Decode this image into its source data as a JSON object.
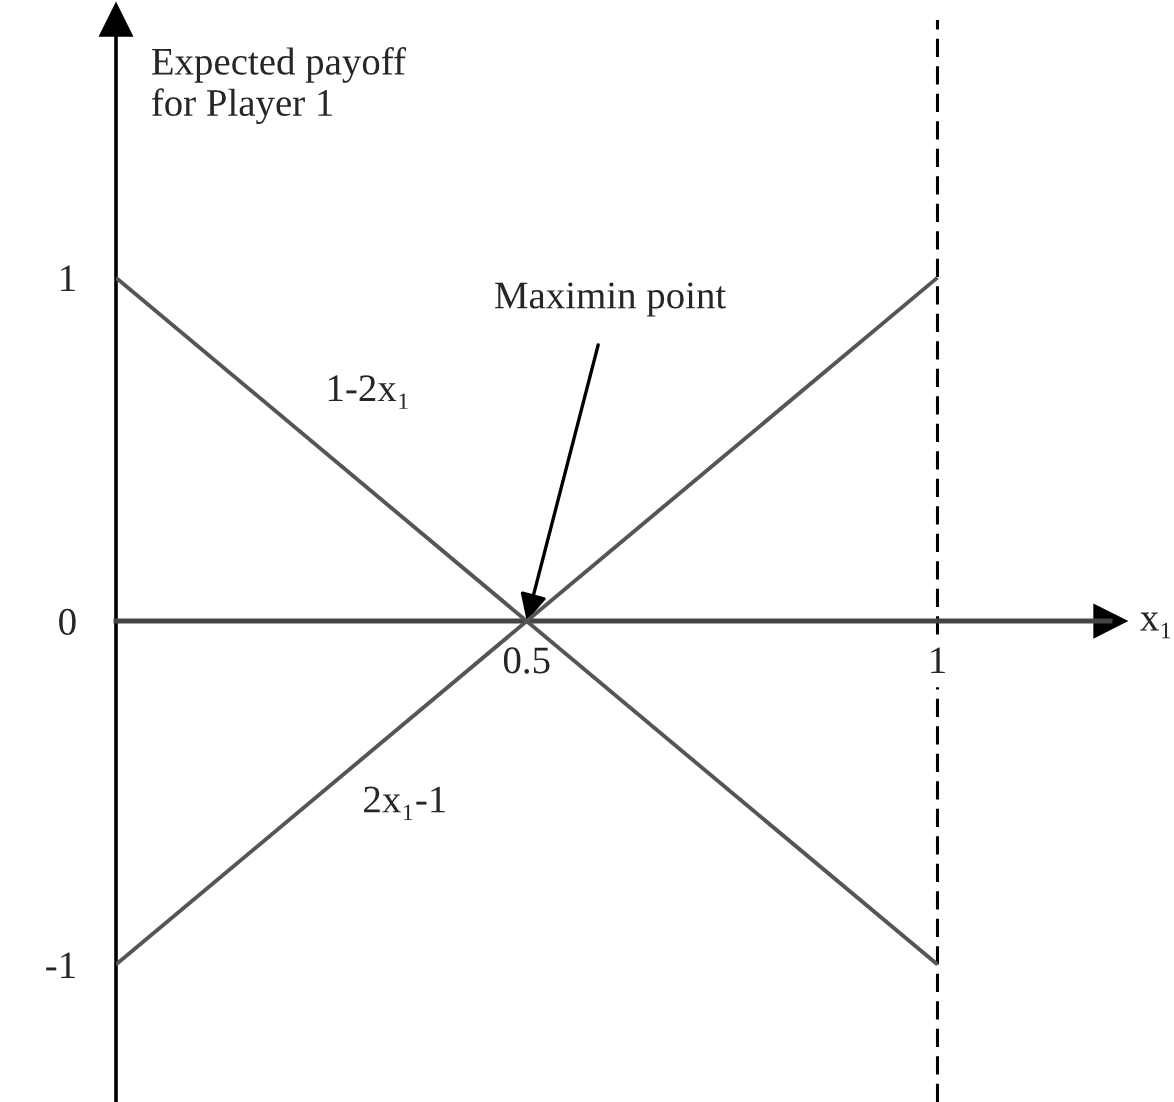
{
  "chart_data": {
    "type": "line",
    "xlabel": "x₁",
    "ylabel": "Expected payoff\nfor Player 1",
    "xlim": [
      0,
      1.21
    ],
    "ylim": [
      -1.4,
      1.75
    ],
    "xticks": [
      0.5,
      1
    ],
    "yticks": [
      -1,
      0,
      1
    ],
    "x": [
      0,
      1
    ],
    "series": [
      {
        "name": "1-2x₁",
        "color": "#555555",
        "values": [
          1,
          -1
        ]
      },
      {
        "name": "2x₁-1",
        "color": "#555555",
        "values": [
          -1,
          1
        ]
      }
    ],
    "ref_lines": [
      {
        "axis": "x",
        "value": 1,
        "line_style": "dashed",
        "color": "#000000"
      }
    ],
    "annotations": [
      {
        "text": "Maximin point",
        "x": 0.5,
        "y": 0
      }
    ]
  }
}
